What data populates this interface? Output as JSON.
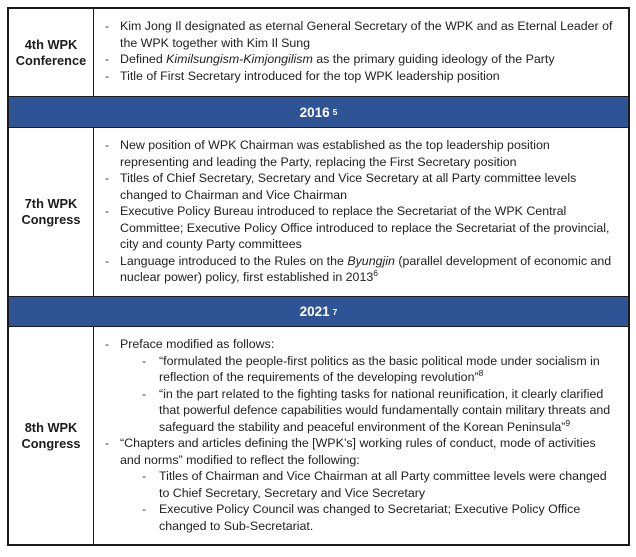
{
  "colors": {
    "banner_background": "#2F5496",
    "banner_text": "#FFFFFF",
    "border": "#1B1B1B",
    "body_text": "#212121"
  },
  "table": {
    "rows": [
      {
        "type": "section",
        "label": "4th WPK Conference",
        "bullets": [
          {
            "level": 1,
            "segments": [
              {
                "text": "Kim Jong Il designated as eternal General Secretary of the WPK and as Eternal Leader of the WPK together with Kim Il Sung"
              }
            ]
          },
          {
            "level": 1,
            "segments": [
              {
                "text": "Defined "
              },
              {
                "text": "Kimilsungism-Kimjongilism",
                "italic": true
              },
              {
                "text": " as the primary guiding ideology of the Party"
              }
            ]
          },
          {
            "level": 1,
            "segments": [
              {
                "text": "Title of First Secretary introduced for the top WPK leadership position"
              }
            ]
          }
        ]
      },
      {
        "type": "banner",
        "year": "2016",
        "footnote": "5"
      },
      {
        "type": "section",
        "label": "7th WPK Congress",
        "bullets": [
          {
            "level": 1,
            "segments": [
              {
                "text": "New position of WPK Chairman was established as the top leadership position representing and leading the Party, replacing the First Secretary position"
              }
            ]
          },
          {
            "level": 1,
            "segments": [
              {
                "text": "Titles of Chief Secretary, Secretary and Vice Secretary at all Party committee levels changed to Chairman and Vice Chairman"
              }
            ]
          },
          {
            "level": 1,
            "segments": [
              {
                "text": "Executive Policy Bureau introduced to replace the Secretariat of the WPK Central Committee; Executive Policy Office introduced to replace the Secretariat of the provincial, city and county Party committees"
              }
            ]
          },
          {
            "level": 1,
            "segments": [
              {
                "text": "Language introduced to the Rules on the "
              },
              {
                "text": "Byungjin",
                "italic": true
              },
              {
                "text": " (parallel development of economic and nuclear power) policy, first established in 2013"
              },
              {
                "text": "6",
                "sup": true
              }
            ]
          }
        ]
      },
      {
        "type": "banner",
        "year": "2021",
        "footnote": "7"
      },
      {
        "type": "section",
        "label": "8th WPK Congress",
        "bullets": [
          {
            "level": 1,
            "segments": [
              {
                "text": "Preface modified as follows:"
              }
            ]
          },
          {
            "level": 2,
            "segments": [
              {
                "text": "“formulated the people-first politics as the basic political mode under socialism in reflection of the requirements of the developing revolution”"
              },
              {
                "text": "8",
                "sup": true
              }
            ]
          },
          {
            "level": 2,
            "segments": [
              {
                "text": "“in the part related to the fighting tasks for national reunification, it clearly clarified that powerful defence capabilities would fundamentally contain military threats and safeguard the stability and peaceful environment of the Korean Peninsula”"
              },
              {
                "text": "9",
                "sup": true
              }
            ]
          },
          {
            "level": 1,
            "segments": [
              {
                "text": "“Chapters and articles defining the [WPK’s] working rules of conduct, mode of activities and norms” modified to reflect the following:"
              }
            ]
          },
          {
            "level": 2,
            "segments": [
              {
                "text": "Titles of Chairman and Vice Chairman at all Party committee levels were changed to Chief Secretary, Secretary and Vice Secretary"
              }
            ]
          },
          {
            "level": 2,
            "segments": [
              {
                "text": "Executive Policy Council was changed to Secretariat; Executive Policy Office changed to Sub-Secretariat."
              }
            ]
          }
        ]
      }
    ]
  }
}
